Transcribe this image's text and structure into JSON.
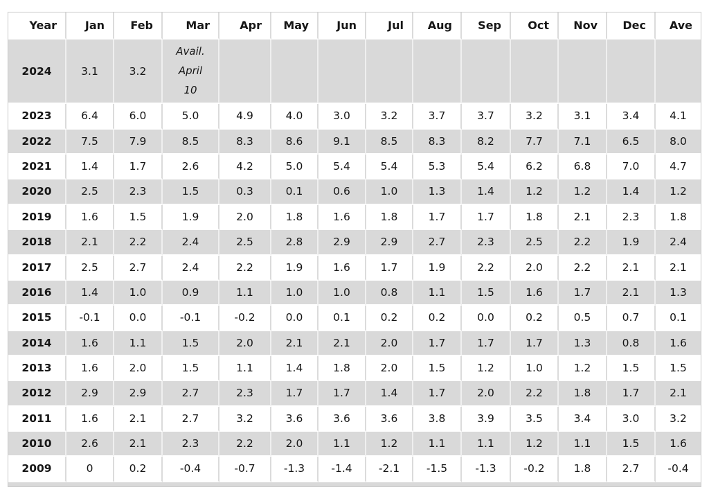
{
  "table": {
    "columns": [
      "Year",
      "Jan",
      "Feb",
      "Mar",
      "Apr",
      "May",
      "Jun",
      "Jul",
      "Aug",
      "Sep",
      "Oct",
      "Nov",
      "Dec",
      "Ave"
    ],
    "availability_note": "Avail. April 10",
    "rows": [
      {
        "year": "2024",
        "values": [
          "3.1",
          "3.2",
          "Avail. April 10",
          "",
          "",
          "",
          "",
          "",
          "",
          "",
          "",
          "",
          ""
        ]
      },
      {
        "year": "2023",
        "values": [
          "6.4",
          "6.0",
          "5.0",
          "4.9",
          "4.0",
          "3.0",
          "3.2",
          "3.7",
          "3.7",
          "3.2",
          "3.1",
          "3.4",
          "4.1"
        ]
      },
      {
        "year": "2022",
        "values": [
          "7.5",
          "7.9",
          "8.5",
          "8.3",
          "8.6",
          "9.1",
          "8.5",
          "8.3",
          "8.2",
          "7.7",
          "7.1",
          "6.5",
          "8.0"
        ]
      },
      {
        "year": "2021",
        "values": [
          "1.4",
          "1.7",
          "2.6",
          "4.2",
          "5.0",
          "5.4",
          "5.4",
          "5.3",
          "5.4",
          "6.2",
          "6.8",
          "7.0",
          "4.7"
        ]
      },
      {
        "year": "2020",
        "values": [
          "2.5",
          "2.3",
          "1.5",
          "0.3",
          "0.1",
          "0.6",
          "1.0",
          "1.3",
          "1.4",
          "1.2",
          "1.2",
          "1.4",
          "1.2"
        ]
      },
      {
        "year": "2019",
        "values": [
          "1.6",
          "1.5",
          "1.9",
          "2.0",
          "1.8",
          "1.6",
          "1.8",
          "1.7",
          "1.7",
          "1.8",
          "2.1",
          "2.3",
          "1.8"
        ]
      },
      {
        "year": "2018",
        "values": [
          "2.1",
          "2.2",
          "2.4",
          "2.5",
          "2.8",
          "2.9",
          "2.9",
          "2.7",
          "2.3",
          "2.5",
          "2.2",
          "1.9",
          "2.4"
        ]
      },
      {
        "year": "2017",
        "values": [
          "2.5",
          "2.7",
          "2.4",
          "2.2",
          "1.9",
          "1.6",
          "1.7",
          "1.9",
          "2.2",
          "2.0",
          "2.2",
          "2.1",
          "2.1"
        ]
      },
      {
        "year": "2016",
        "values": [
          "1.4",
          "1.0",
          "0.9",
          "1.1",
          "1.0",
          "1.0",
          "0.8",
          "1.1",
          "1.5",
          "1.6",
          "1.7",
          "2.1",
          "1.3"
        ]
      },
      {
        "year": "2015",
        "values": [
          "-0.1",
          "0.0",
          "-0.1",
          "-0.2",
          "0.0",
          "0.1",
          "0.2",
          "0.2",
          "0.0",
          "0.2",
          "0.5",
          "0.7",
          "0.1"
        ]
      },
      {
        "year": "2014",
        "values": [
          "1.6",
          "1.1",
          "1.5",
          "2.0",
          "2.1",
          "2.1",
          "2.0",
          "1.7",
          "1.7",
          "1.7",
          "1.3",
          "0.8",
          "1.6"
        ]
      },
      {
        "year": "2013",
        "values": [
          "1.6",
          "2.0",
          "1.5",
          "1.1",
          "1.4",
          "1.8",
          "2.0",
          "1.5",
          "1.2",
          "1.0",
          "1.2",
          "1.5",
          "1.5"
        ]
      },
      {
        "year": "2012",
        "values": [
          "2.9",
          "2.9",
          "2.7",
          "2.3",
          "1.7",
          "1.7",
          "1.4",
          "1.7",
          "2.0",
          "2.2",
          "1.8",
          "1.7",
          "2.1"
        ]
      },
      {
        "year": "2011",
        "values": [
          "1.6",
          "2.1",
          "2.7",
          "3.2",
          "3.6",
          "3.6",
          "3.6",
          "3.8",
          "3.9",
          "3.5",
          "3.4",
          "3.0",
          "3.2"
        ]
      },
      {
        "year": "2010",
        "values": [
          "2.6",
          "2.1",
          "2.3",
          "2.2",
          "2.0",
          "1.1",
          "1.2",
          "1.1",
          "1.1",
          "1.2",
          "1.1",
          "1.5",
          "1.6"
        ]
      },
      {
        "year": "2009",
        "values": [
          "0",
          "0.2",
          "-0.4",
          "-0.7",
          "-1.3",
          "-1.4",
          "-2.1",
          "-1.5",
          "-1.3",
          "-0.2",
          "1.8",
          "2.7",
          "-0.4"
        ]
      }
    ]
  },
  "colors": {
    "shaded_row": "#d9d9d9",
    "plain_row": "#ffffff",
    "cell_border_on_white": "#dbdbdb",
    "cell_border_on_gray": "#efefef",
    "outer_border": "#c9c9c9",
    "text": "#161616"
  },
  "chart_data": {
    "type": "table",
    "columns": [
      "Year",
      "Jan",
      "Feb",
      "Mar",
      "Apr",
      "May",
      "Jun",
      "Jul",
      "Aug",
      "Sep",
      "Oct",
      "Nov",
      "Dec",
      "Ave"
    ],
    "note": {
      "year": 2024,
      "month": "Mar",
      "text": "Avail. April 10"
    },
    "rows": [
      {
        "year": 2024,
        "values": [
          3.1,
          3.2,
          null,
          null,
          null,
          null,
          null,
          null,
          null,
          null,
          null,
          null,
          null
        ]
      },
      {
        "year": 2023,
        "values": [
          6.4,
          6.0,
          5.0,
          4.9,
          4.0,
          3.0,
          3.2,
          3.7,
          3.7,
          3.2,
          3.1,
          3.4,
          4.1
        ]
      },
      {
        "year": 2022,
        "values": [
          7.5,
          7.9,
          8.5,
          8.3,
          8.6,
          9.1,
          8.5,
          8.3,
          8.2,
          7.7,
          7.1,
          6.5,
          8.0
        ]
      },
      {
        "year": 2021,
        "values": [
          1.4,
          1.7,
          2.6,
          4.2,
          5.0,
          5.4,
          5.4,
          5.3,
          5.4,
          6.2,
          6.8,
          7.0,
          4.7
        ]
      },
      {
        "year": 2020,
        "values": [
          2.5,
          2.3,
          1.5,
          0.3,
          0.1,
          0.6,
          1.0,
          1.3,
          1.4,
          1.2,
          1.2,
          1.4,
          1.2
        ]
      },
      {
        "year": 2019,
        "values": [
          1.6,
          1.5,
          1.9,
          2.0,
          1.8,
          1.6,
          1.8,
          1.7,
          1.7,
          1.8,
          2.1,
          2.3,
          1.8
        ]
      },
      {
        "year": 2018,
        "values": [
          2.1,
          2.2,
          2.4,
          2.5,
          2.8,
          2.9,
          2.9,
          2.7,
          2.3,
          2.5,
          2.2,
          1.9,
          2.4
        ]
      },
      {
        "year": 2017,
        "values": [
          2.5,
          2.7,
          2.4,
          2.2,
          1.9,
          1.6,
          1.7,
          1.9,
          2.2,
          2.0,
          2.2,
          2.1,
          2.1
        ]
      },
      {
        "year": 2016,
        "values": [
          1.4,
          1.0,
          0.9,
          1.1,
          1.0,
          1.0,
          0.8,
          1.1,
          1.5,
          1.6,
          1.7,
          2.1,
          1.3
        ]
      },
      {
        "year": 2015,
        "values": [
          -0.1,
          0.0,
          -0.1,
          -0.2,
          0.0,
          0.1,
          0.2,
          0.2,
          0.0,
          0.2,
          0.5,
          0.7,
          0.1
        ]
      },
      {
        "year": 2014,
        "values": [
          1.6,
          1.1,
          1.5,
          2.0,
          2.1,
          2.1,
          2.0,
          1.7,
          1.7,
          1.7,
          1.3,
          0.8,
          1.6
        ]
      },
      {
        "year": 2013,
        "values": [
          1.6,
          2.0,
          1.5,
          1.1,
          1.4,
          1.8,
          2.0,
          1.5,
          1.2,
          1.0,
          1.2,
          1.5,
          1.5
        ]
      },
      {
        "year": 2012,
        "values": [
          2.9,
          2.9,
          2.7,
          2.3,
          1.7,
          1.7,
          1.4,
          1.7,
          2.0,
          2.2,
          1.8,
          1.7,
          2.1
        ]
      },
      {
        "year": 2011,
        "values": [
          1.6,
          2.1,
          2.7,
          3.2,
          3.6,
          3.6,
          3.6,
          3.8,
          3.9,
          3.5,
          3.4,
          3.0,
          3.2
        ]
      },
      {
        "year": 2010,
        "values": [
          2.6,
          2.1,
          2.3,
          2.2,
          2.0,
          1.1,
          1.2,
          1.1,
          1.1,
          1.2,
          1.1,
          1.5,
          1.6
        ]
      },
      {
        "year": 2009,
        "values": [
          0,
          0.2,
          -0.4,
          -0.7,
          -1.3,
          -1.4,
          -2.1,
          -1.5,
          -1.3,
          -0.2,
          1.8,
          2.7,
          -0.4
        ]
      }
    ]
  }
}
